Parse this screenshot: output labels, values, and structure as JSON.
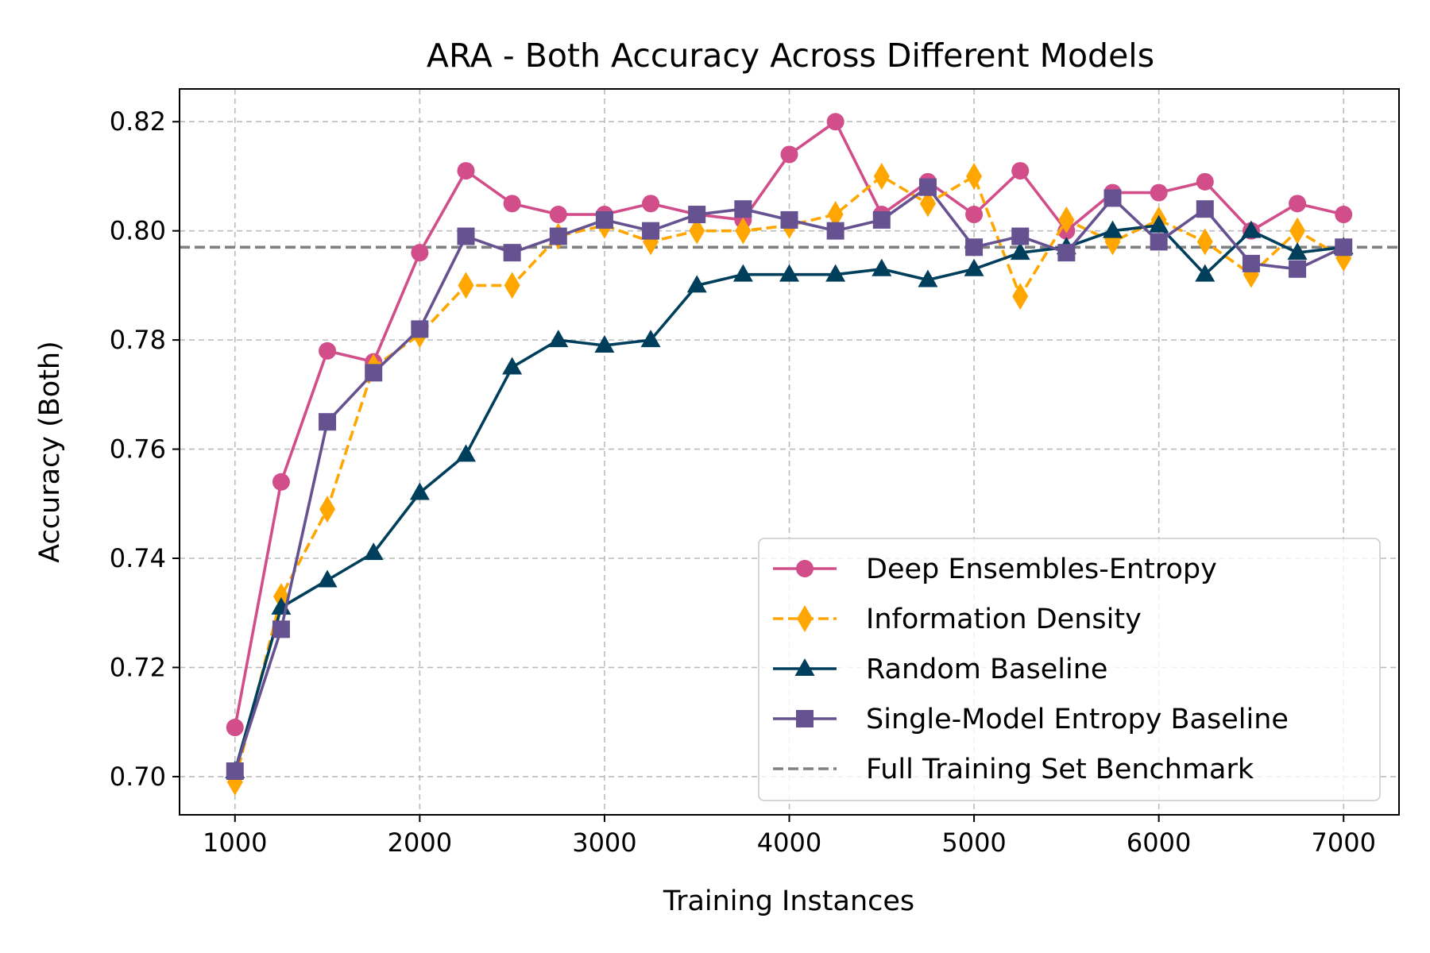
{
  "chart_data": {
    "type": "line",
    "title": "ARA - Both Accuracy Across Different Models",
    "xlabel": "Training Instances",
    "ylabel": "Accuracy (Both)",
    "xlim": [
      700,
      7300
    ],
    "ylim": [
      0.693,
      0.826
    ],
    "x_ticks": [
      1000,
      2000,
      3000,
      4000,
      5000,
      6000,
      7000
    ],
    "x_tick_labels": [
      "1000",
      "2000",
      "3000",
      "4000",
      "5000",
      "6000",
      "7000"
    ],
    "y_ticks": [
      0.7,
      0.72,
      0.74,
      0.76,
      0.78,
      0.8,
      0.82
    ],
    "y_tick_labels": [
      "0.70",
      "0.72",
      "0.74",
      "0.76",
      "0.78",
      "0.80",
      "0.82"
    ],
    "grid": true,
    "legend_position": "lower-right",
    "x": [
      1000,
      1250,
      1500,
      1750,
      2000,
      2250,
      2500,
      2750,
      3000,
      3250,
      3500,
      3750,
      4000,
      4250,
      4500,
      4750,
      5000,
      5250,
      5500,
      5750,
      6000,
      6250,
      6500,
      6750,
      7000
    ],
    "series": [
      {
        "name": "Deep Ensembles-Entropy",
        "color": "#d24e8a",
        "marker": "circle",
        "line_style": "solid",
        "values": [
          0.709,
          0.754,
          0.778,
          0.776,
          0.796,
          0.811,
          0.805,
          0.803,
          0.803,
          0.805,
          0.803,
          0.802,
          0.814,
          0.82,
          0.803,
          0.809,
          0.803,
          0.811,
          0.8,
          0.807,
          0.807,
          0.809,
          0.8,
          0.805,
          0.803
        ]
      },
      {
        "name": "Information Density",
        "color": "#ffa600",
        "marker": "thin-diamond",
        "line_style": "dashed",
        "values": [
          0.699,
          0.733,
          0.749,
          0.775,
          0.781,
          0.79,
          0.79,
          0.799,
          0.801,
          0.798,
          0.8,
          0.8,
          0.801,
          0.803,
          0.81,
          0.805,
          0.81,
          0.788,
          0.802,
          0.798,
          0.802,
          0.798,
          0.792,
          0.8,
          0.795
        ]
      },
      {
        "name": "Random Baseline",
        "color": "#003f5c",
        "marker": "triangle-up",
        "line_style": "solid",
        "values": [
          0.701,
          0.731,
          0.736,
          0.741,
          0.752,
          0.759,
          0.775,
          0.78,
          0.779,
          0.78,
          0.79,
          0.792,
          0.792,
          0.792,
          0.793,
          0.791,
          0.793,
          0.796,
          0.797,
          0.8,
          0.801,
          0.792,
          0.8,
          0.796,
          0.797
        ]
      },
      {
        "name": "Single-Model Entropy Baseline",
        "color": "#665191",
        "marker": "square",
        "line_style": "solid",
        "values": [
          0.701,
          0.727,
          0.765,
          0.774,
          0.782,
          0.799,
          0.796,
          0.799,
          0.802,
          0.8,
          0.803,
          0.804,
          0.802,
          0.8,
          0.802,
          0.808,
          0.797,
          0.799,
          0.796,
          0.806,
          0.798,
          0.804,
          0.794,
          0.793,
          0.797
        ]
      }
    ],
    "benchmark": {
      "name": "Full Training Set Benchmark",
      "color": "#808080",
      "line_style": "dashed",
      "value": 0.797
    }
  }
}
